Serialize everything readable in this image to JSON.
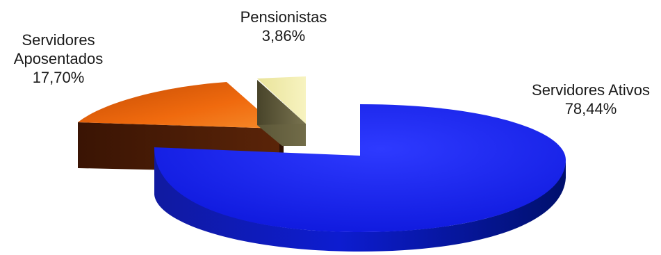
{
  "chart_data": {
    "type": "pie",
    "style": "3d-exploded",
    "title": "",
    "legend": "none",
    "slices": [
      {
        "name": "Servidores Ativos",
        "value": 78.44,
        "value_label": "78,44%",
        "top_color": "#0a14e6",
        "side_color": "#00108a"
      },
      {
        "name": "Servidores Aposentados",
        "name_lines": [
          "Servidores",
          "Aposentados"
        ],
        "value": 17.7,
        "value_label": "17,70%",
        "top_color": "#e8620a",
        "side_color": "#4a1c06"
      },
      {
        "name": "Pensionistas",
        "value": 3.86,
        "value_label": "3,86%",
        "top_color": "#f2eda4",
        "side_color": "#5f5a38"
      }
    ]
  }
}
